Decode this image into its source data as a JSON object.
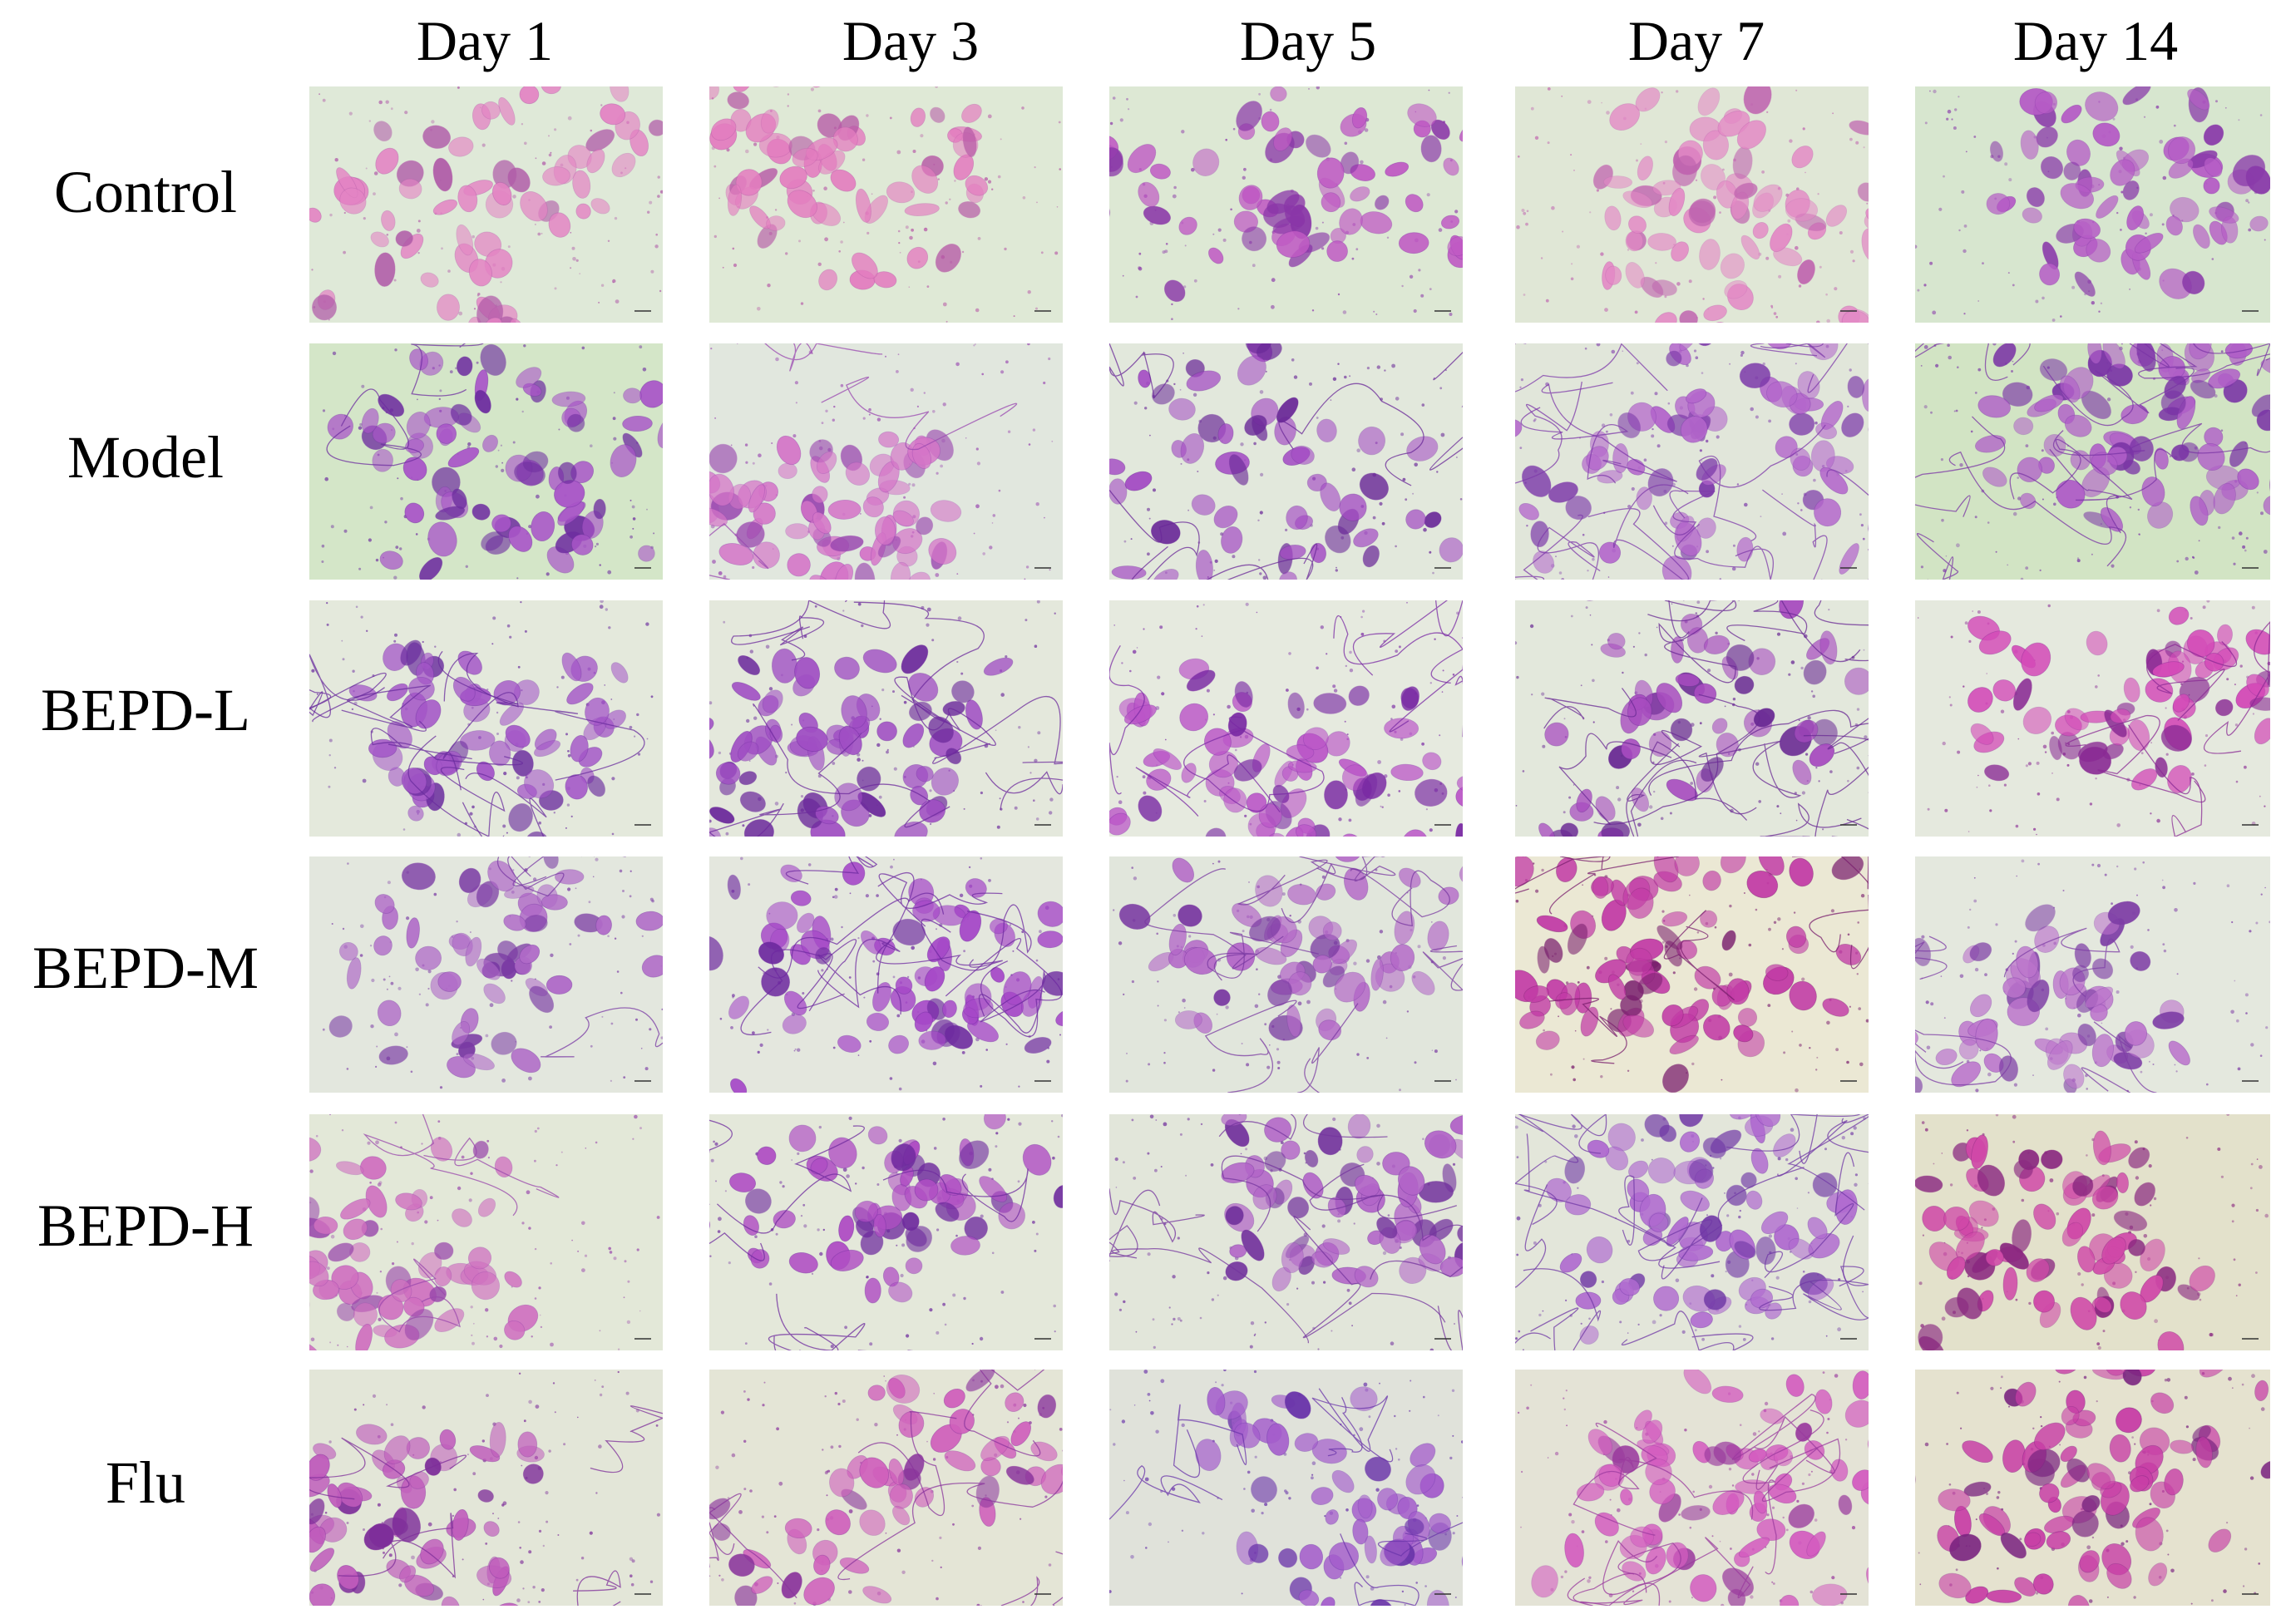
{
  "figure": {
    "columns": [
      "Day 1",
      "Day 3",
      "Day 5",
      "Day 7",
      "Day 14"
    ],
    "rows": [
      "Control",
      "Model",
      "BEPD-L",
      "BEPD-M",
      "BEPD-H",
      "Flu"
    ]
  },
  "panels": [
    {
      "row": "Control",
      "column": "Day 1",
      "background": "#dfe9d8",
      "cells": "#e484c4",
      "dark": "#b05aa8",
      "density": 0.55,
      "fibers": 0
    },
    {
      "row": "Control",
      "column": "Day 3",
      "background": "#dfe9d6",
      "cells": "#e47ec0",
      "dark": "#b658a6",
      "density": 0.6,
      "fibers": 0
    },
    {
      "row": "Control",
      "column": "Day 5",
      "background": "#dde8d4",
      "cells": "#c05ac4",
      "dark": "#8a36a8",
      "density": 0.55,
      "fibers": 0
    },
    {
      "row": "Control",
      "column": "Day 7",
      "background": "#e0e7d6",
      "cells": "#e48ac6",
      "dark": "#c065b0",
      "density": 0.7,
      "fibers": 0
    },
    {
      "row": "Control",
      "column": "Day 14",
      "background": "#d7e6cf",
      "cells": "#b65cc6",
      "dark": "#8a3aaa",
      "density": 0.45,
      "fibers": 0
    },
    {
      "row": "Model",
      "column": "Day 1",
      "background": "#d4e6c8",
      "cells": "#a955c8",
      "dark": "#6e2ea0",
      "density": 0.55,
      "fibers": 2
    },
    {
      "row": "Model",
      "column": "Day 3",
      "background": "#e1e7de",
      "cells": "#d575c8",
      "dark": "#9a48b0",
      "density": 0.5,
      "fibers": 3
    },
    {
      "row": "Model",
      "column": "Day 5",
      "background": "#e2e8dc",
      "cells": "#a44bc4",
      "dark": "#6a2898",
      "density": 0.5,
      "fibers": 5
    },
    {
      "row": "Model",
      "column": "Day 7",
      "background": "#e1e6da",
      "cells": "#b466cc",
      "dark": "#7d3aaa",
      "density": 0.7,
      "fibers": 14
    },
    {
      "row": "Model",
      "column": "Day 14",
      "background": "#d2e4c4",
      "cells": "#b05ec8",
      "dark": "#7a34a6",
      "density": 0.65,
      "fibers": 10
    },
    {
      "row": "BEPD-L",
      "column": "Day 1",
      "background": "#e4e9dc",
      "cells": "#a456c8",
      "dark": "#6a2c9e",
      "density": 0.45,
      "fibers": 8
    },
    {
      "row": "BEPD-L",
      "column": "Day 3",
      "background": "#e4e8dc",
      "cells": "#a04ec4",
      "dark": "#6c2a9c",
      "density": 0.6,
      "fibers": 8
    },
    {
      "row": "BEPD-L",
      "column": "Day 5",
      "background": "#e6eadf",
      "cells": "#bb55c8",
      "dark": "#7a2aa4",
      "density": 0.65,
      "fibers": 6
    },
    {
      "row": "BEPD-L",
      "column": "Day 7",
      "background": "#e3e8dc",
      "cells": "#a84cc0",
      "dark": "#6a2a94",
      "density": 0.35,
      "fibers": 14
    },
    {
      "row": "BEPD-L",
      "column": "Day 14",
      "background": "#e5e9de",
      "cells": "#d44ab8",
      "dark": "#8a2a94",
      "density": 0.5,
      "fibers": 4
    },
    {
      "row": "BEPD-M",
      "column": "Day 1",
      "background": "#e3e7de",
      "cells": "#b06ac8",
      "dark": "#7a3aa4",
      "density": 0.35,
      "fibers": 3
    },
    {
      "row": "BEPD-M",
      "column": "Day 3",
      "background": "#e4e7de",
      "cells": "#a648c8",
      "dark": "#6e2aa0",
      "density": 0.6,
      "fibers": 10
    },
    {
      "row": "BEPD-M",
      "column": "Day 5",
      "background": "#e1e6dc",
      "cells": "#b468c8",
      "dark": "#7a3aa2",
      "density": 0.35,
      "fibers": 8
    },
    {
      "row": "BEPD-M",
      "column": "Day 7",
      "background": "#ebe8d4",
      "cells": "#c23aa6",
      "dark": "#7a1f6e",
      "density": 0.75,
      "fibers": 6
    },
    {
      "row": "BEPD-M",
      "column": "Day 14",
      "background": "#e4e8de",
      "cells": "#bc74cc",
      "dark": "#7e3ea6",
      "density": 0.35,
      "fibers": 4
    },
    {
      "row": "BEPD-H",
      "column": "Day 1",
      "background": "#e3e8d8",
      "cells": "#d070c0",
      "dark": "#9a48ac",
      "density": 0.4,
      "fibers": 3
    },
    {
      "row": "BEPD-H",
      "column": "Day 3",
      "background": "#e4e8da",
      "cells": "#b04ec4",
      "dark": "#6e2a9e",
      "density": 0.5,
      "fibers": 5
    },
    {
      "row": "BEPD-H",
      "column": "Day 5",
      "background": "#e2e6da",
      "cells": "#b264c8",
      "dark": "#74349e",
      "density": 0.45,
      "fibers": 8
    },
    {
      "row": "BEPD-H",
      "column": "Day 7",
      "background": "#e3e6da",
      "cells": "#b06ad0",
      "dark": "#7038a6",
      "density": 0.65,
      "fibers": 14
    },
    {
      "row": "BEPD-H",
      "column": "Day 14",
      "background": "#e3e1cb",
      "cells": "#d048a8",
      "dark": "#8a2880",
      "density": 0.6,
      "fibers": 0
    },
    {
      "row": "Flu",
      "column": "Day 1",
      "background": "#e3e6d8",
      "cells": "#c05cbc",
      "dark": "#7e2e9a",
      "density": 0.45,
      "fibers": 4
    },
    {
      "row": "Flu",
      "column": "Day 3",
      "background": "#e4e5d6",
      "cells": "#d060bc",
      "dark": "#8a349c",
      "density": 0.35,
      "fibers": 6
    },
    {
      "row": "Flu",
      "column": "Day 5",
      "background": "#e0e2da",
      "cells": "#a45ccc",
      "dark": "#6a34aa",
      "density": 0.45,
      "fibers": 6
    },
    {
      "row": "Flu",
      "column": "Day 7",
      "background": "#e4e3d6",
      "cells": "#d45cc0",
      "dark": "#9a3a9e",
      "density": 0.75,
      "fibers": 8
    },
    {
      "row": "Flu",
      "column": "Day 14",
      "background": "#e5e2cf",
      "cells": "#c83ea6",
      "dark": "#7a2480",
      "density": 0.7,
      "fibers": 0
    }
  ]
}
